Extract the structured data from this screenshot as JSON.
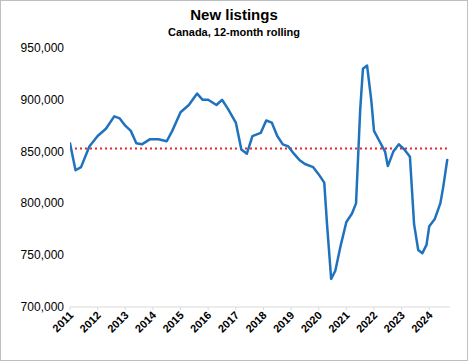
{
  "chart_data": {
    "type": "line",
    "title": "New listings",
    "subtitle": "Canada, 12-month rolling",
    "x": [
      2011.0,
      2011.2,
      2011.4,
      2011.7,
      2012.0,
      2012.3,
      2012.6,
      2012.8,
      2013.0,
      2013.2,
      2013.4,
      2013.6,
      2013.9,
      2014.2,
      2014.5,
      2014.7,
      2015.0,
      2015.3,
      2015.6,
      2015.8,
      2016.0,
      2016.3,
      2016.5,
      2016.7,
      2017.0,
      2017.2,
      2017.4,
      2017.6,
      2017.9,
      2018.1,
      2018.3,
      2018.5,
      2018.7,
      2018.9,
      2019.1,
      2019.3,
      2019.5,
      2019.8,
      2020.0,
      2020.2,
      2020.3,
      2020.45,
      2020.6,
      2020.8,
      2021.0,
      2021.2,
      2021.35,
      2021.5,
      2021.6,
      2021.75,
      2021.9,
      2022.0,
      2022.2,
      2022.4,
      2022.5,
      2022.7,
      2022.9,
      2023.1,
      2023.3,
      2023.45,
      2023.6,
      2023.75,
      2023.9,
      2024.0,
      2024.2,
      2024.4,
      2024.5,
      2024.65
    ],
    "values": [
      858000,
      832000,
      835000,
      855000,
      865000,
      872000,
      884000,
      882000,
      875000,
      870000,
      858000,
      857000,
      862000,
      862000,
      860000,
      870000,
      888000,
      895000,
      906000,
      900000,
      900000,
      895000,
      900000,
      892000,
      878000,
      852000,
      848000,
      865000,
      868000,
      880000,
      878000,
      865000,
      857000,
      855000,
      848000,
      842000,
      838000,
      835000,
      828000,
      820000,
      780000,
      727000,
      735000,
      760000,
      782000,
      790000,
      800000,
      890000,
      930000,
      933000,
      900000,
      870000,
      860000,
      850000,
      836000,
      850000,
      857000,
      852000,
      845000,
      780000,
      755000,
      752000,
      760000,
      778000,
      785000,
      800000,
      815000,
      842000
    ],
    "color": "#1f72bd",
    "xlim": [
      2011,
      2024.75
    ],
    "xticks": [
      2011,
      2012,
      2013,
      2014,
      2015,
      2016,
      2017,
      2018,
      2019,
      2020,
      2021,
      2022,
      2023,
      2024
    ],
    "ylim": [
      700000,
      950000
    ],
    "yticks": [
      {
        "value": 700000,
        "label": "700,000"
      },
      {
        "value": 750000,
        "label": "750,000"
      },
      {
        "value": 800000,
        "label": "800,000"
      },
      {
        "value": 850000,
        "label": "850,000"
      },
      {
        "value": 900000,
        "label": "900,000"
      },
      {
        "value": 950000,
        "label": "950,000"
      }
    ],
    "grid": false,
    "hline": {
      "value": 853000,
      "color": "#e8262b",
      "line_style": "dotted"
    }
  }
}
